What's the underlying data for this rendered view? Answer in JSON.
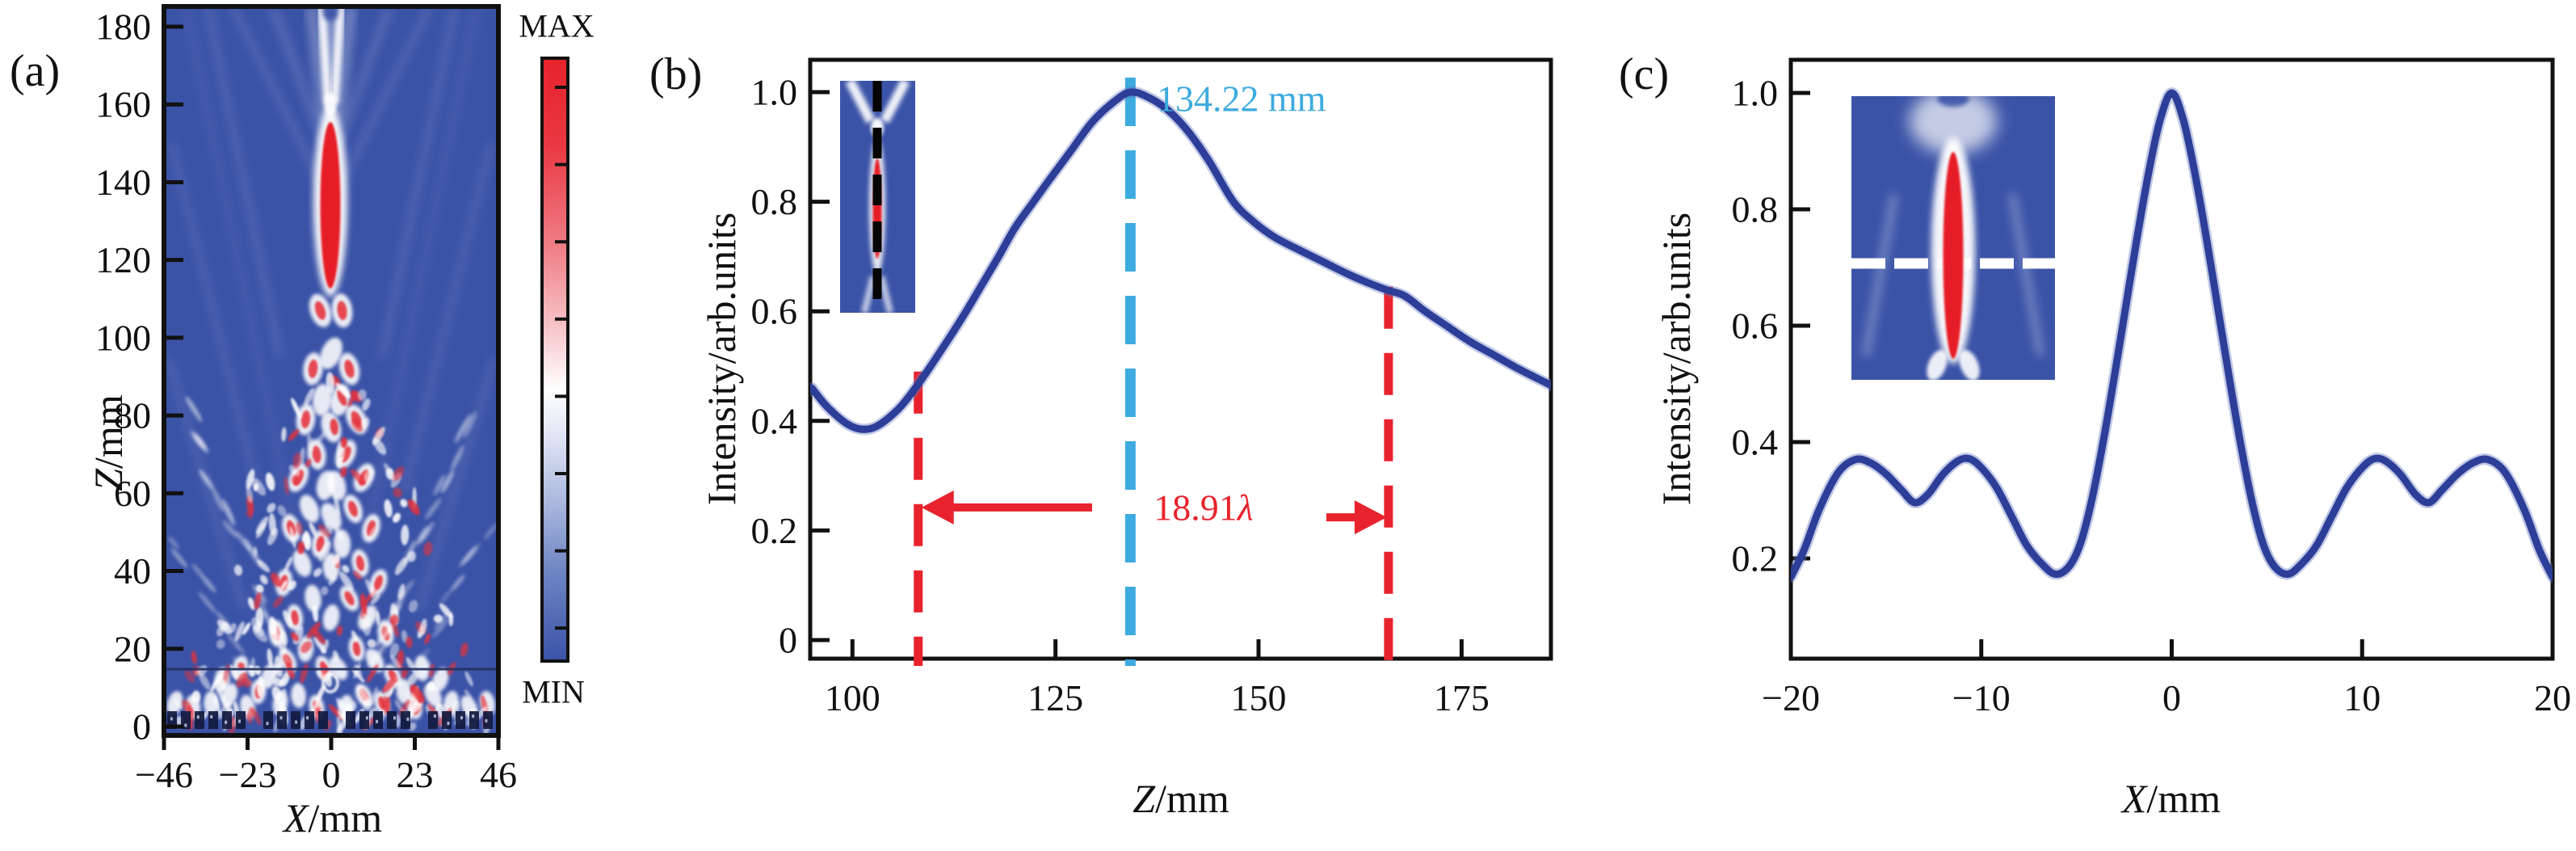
{
  "colors": {
    "heat_blue": "#3b53a7",
    "heat_red": "#e61e26",
    "curve": "#2c3e98",
    "curve_halo": "rgba(100,118,190,0.40)",
    "annotation_red": "#e8232d",
    "annotation_cyan": "#3dabdf",
    "ink": "#111111"
  },
  "chart_data": [
    {
      "type": "heatmap",
      "panel": "a",
      "panel_label": "(a)",
      "xlabel": {
        "var": "X",
        "unit": "/mm"
      },
      "ylabel": {
        "var": "Z",
        "unit": "/mm"
      },
      "x_range": [
        -46,
        46
      ],
      "z_range": [
        0,
        185
      ],
      "x_ticks": [
        {
          "v": -46,
          "label": "−46"
        },
        {
          "v": -23,
          "label": "−23"
        },
        {
          "v": 0,
          "label": "0"
        },
        {
          "v": 23,
          "label": "23"
        },
        {
          "v": 46,
          "label": "46"
        }
      ],
      "y_ticks": [
        {
          "v": 0,
          "label": "0"
        },
        {
          "v": 20,
          "label": "20"
        },
        {
          "v": 40,
          "label": "40"
        },
        {
          "v": 60,
          "label": "60"
        },
        {
          "v": 80,
          "label": "80"
        },
        {
          "v": 100,
          "label": "100"
        },
        {
          "v": 120,
          "label": "120"
        },
        {
          "v": 140,
          "label": "140"
        },
        {
          "v": 160,
          "label": "160"
        },
        {
          "v": 180,
          "label": "180"
        }
      ],
      "colorbar": {
        "max_label": "MAX",
        "min_label": "MIN",
        "top_color": "#e8222b",
        "mid_color": "#ffffff",
        "bottom_color": "#3b53a7"
      },
      "description": "Simulated 2D acoustic intensity field above the transducer array; interference lattice converging to a bright on-axis focal spot near Z = 134 mm, thin source line near Z = 13 mm and element blocks at Z = 0"
    },
    {
      "type": "line",
      "panel": "b",
      "panel_label": "(b)",
      "xlabel": {
        "var": "Z",
        "unit": "/mm"
      },
      "ylabel": "Intensity/arb.units",
      "xlim": [
        95,
        186
      ],
      "ylim": [
        0,
        1.05
      ],
      "grid": false,
      "legend": null,
      "x_ticks": [
        {
          "v": 100,
          "label": "100"
        },
        {
          "v": 125,
          "label": "125"
        },
        {
          "v": 150,
          "label": "150"
        },
        {
          "v": 175,
          "label": "175"
        }
      ],
      "y_ticks": [
        {
          "v": 0,
          "label": "0"
        },
        {
          "v": 0.2,
          "label": "0.2"
        },
        {
          "v": 0.4,
          "label": "0.4"
        },
        {
          "v": 0.6,
          "label": "0.6"
        },
        {
          "v": 0.8,
          "label": "0.8"
        },
        {
          "v": 1,
          "label": "1.0"
        }
      ],
      "x": [
        95,
        96.5,
        98,
        99.5,
        101,
        102.5,
        104,
        106,
        108,
        110,
        112,
        114,
        116,
        118,
        120,
        122.3,
        124.5,
        127,
        129.5,
        132,
        134.22,
        136.5,
        139,
        141.5,
        144,
        146.9,
        149.5,
        152,
        155,
        158,
        161,
        164,
        166,
        168,
        170.5,
        173,
        176,
        179,
        182,
        184,
        186
      ],
      "y": [
        0.46,
        0.432,
        0.41,
        0.393,
        0.385,
        0.387,
        0.4,
        0.427,
        0.465,
        0.508,
        0.553,
        0.6,
        0.65,
        0.7,
        0.752,
        0.8,
        0.845,
        0.895,
        0.945,
        0.98,
        1.0,
        0.99,
        0.965,
        0.925,
        0.872,
        0.8,
        0.762,
        0.735,
        0.712,
        0.69,
        0.668,
        0.649,
        0.638,
        0.628,
        0.6,
        0.575,
        0.545,
        0.52,
        0.495,
        0.48,
        0.465
      ],
      "annotations": {
        "focus_label": "134.22 mm",
        "focus_z": 134.22,
        "width_value": "18.91",
        "lambda_symbol": "λ",
        "depth_line_left_z": 108.1,
        "depth_line_right_z": 166,
        "left_line_top": 0.49,
        "right_line_top": 0.645,
        "arrow_level_left": 0.242,
        "arrow_level_right": 0.224
      },
      "inset": "axial field map of the focal column with black dashed sampling line along Z"
    },
    {
      "type": "line",
      "panel": "c",
      "panel_label": "(c)",
      "xlabel": {
        "var": "X",
        "unit": "/mm"
      },
      "ylabel": "Intensity/arb.units",
      "xlim": [
        -20,
        20
      ],
      "ylim": [
        0.03,
        1.05
      ],
      "grid": false,
      "legend": null,
      "x_ticks": [
        {
          "v": -20,
          "label": "−20"
        },
        {
          "v": -10,
          "label": "−10"
        },
        {
          "v": 0,
          "label": "0"
        },
        {
          "v": 10,
          "label": "10"
        },
        {
          "v": 20,
          "label": "20"
        }
      ],
      "y_ticks": [
        {
          "v": 0.2,
          "label": "0.2"
        },
        {
          "v": 0.4,
          "label": "0.4"
        },
        {
          "v": 0.6,
          "label": "0.6"
        },
        {
          "v": 0.8,
          "label": "0.8"
        },
        {
          "v": 1,
          "label": "1.0"
        }
      ],
      "x": [
        -20,
        -19.3,
        -18.5,
        -17.5,
        -16.6,
        -15.8,
        -15,
        -14.2,
        -13.5,
        -12.8,
        -12,
        -11.2,
        -10.6,
        -10,
        -9.2,
        -8.4,
        -7.6,
        -6.8,
        -6.1,
        -5.4,
        -4.8,
        -4.2,
        -3.6,
        -3,
        -2.4,
        -1.8,
        -1.2,
        -0.6,
        0,
        0.6,
        1.2,
        1.8,
        2.4,
        3,
        3.6,
        4.2,
        4.8,
        5.4,
        6.1,
        6.8,
        7.6,
        8.4,
        9.2,
        10,
        10.6,
        11.2,
        12,
        12.8,
        13.5,
        14.2,
        15,
        15.8,
        16.6,
        17.5,
        18.5,
        19.3,
        20
      ],
      "y": [
        0.168,
        0.215,
        0.285,
        0.348,
        0.37,
        0.364,
        0.345,
        0.318,
        0.296,
        0.31,
        0.345,
        0.368,
        0.371,
        0.356,
        0.322,
        0.272,
        0.222,
        0.19,
        0.173,
        0.186,
        0.225,
        0.3,
        0.4,
        0.515,
        0.635,
        0.755,
        0.865,
        0.955,
        1.0,
        0.955,
        0.865,
        0.755,
        0.635,
        0.515,
        0.4,
        0.3,
        0.225,
        0.186,
        0.173,
        0.19,
        0.222,
        0.272,
        0.322,
        0.356,
        0.371,
        0.368,
        0.345,
        0.31,
        0.296,
        0.318,
        0.345,
        0.364,
        0.37,
        0.348,
        0.285,
        0.215,
        0.168
      ],
      "inset": "lateral field map of the focal column with white dashed sampling line along X"
    }
  ]
}
